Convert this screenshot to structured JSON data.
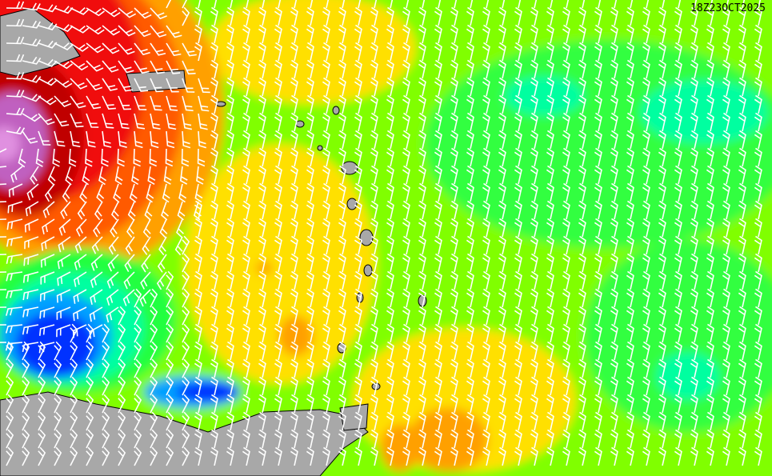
{
  "map": {
    "timestamp": "18Z23OCT2025",
    "colors": {
      "land": "#a8a8a8",
      "purple": "#c060c0",
      "dark_red": "#c00000",
      "red": "#f01010",
      "orange_red": "#ff5a00",
      "orange": "#ffa000",
      "yellow": "#ffe000",
      "yellow_green": "#c8f000",
      "light_green": "#80ff00",
      "green": "#20ff40",
      "teal": "#00ffa0",
      "cyan_blue": "#00a0ff",
      "blue": "#0030ff",
      "barbs": "#ffffff"
    }
  }
}
